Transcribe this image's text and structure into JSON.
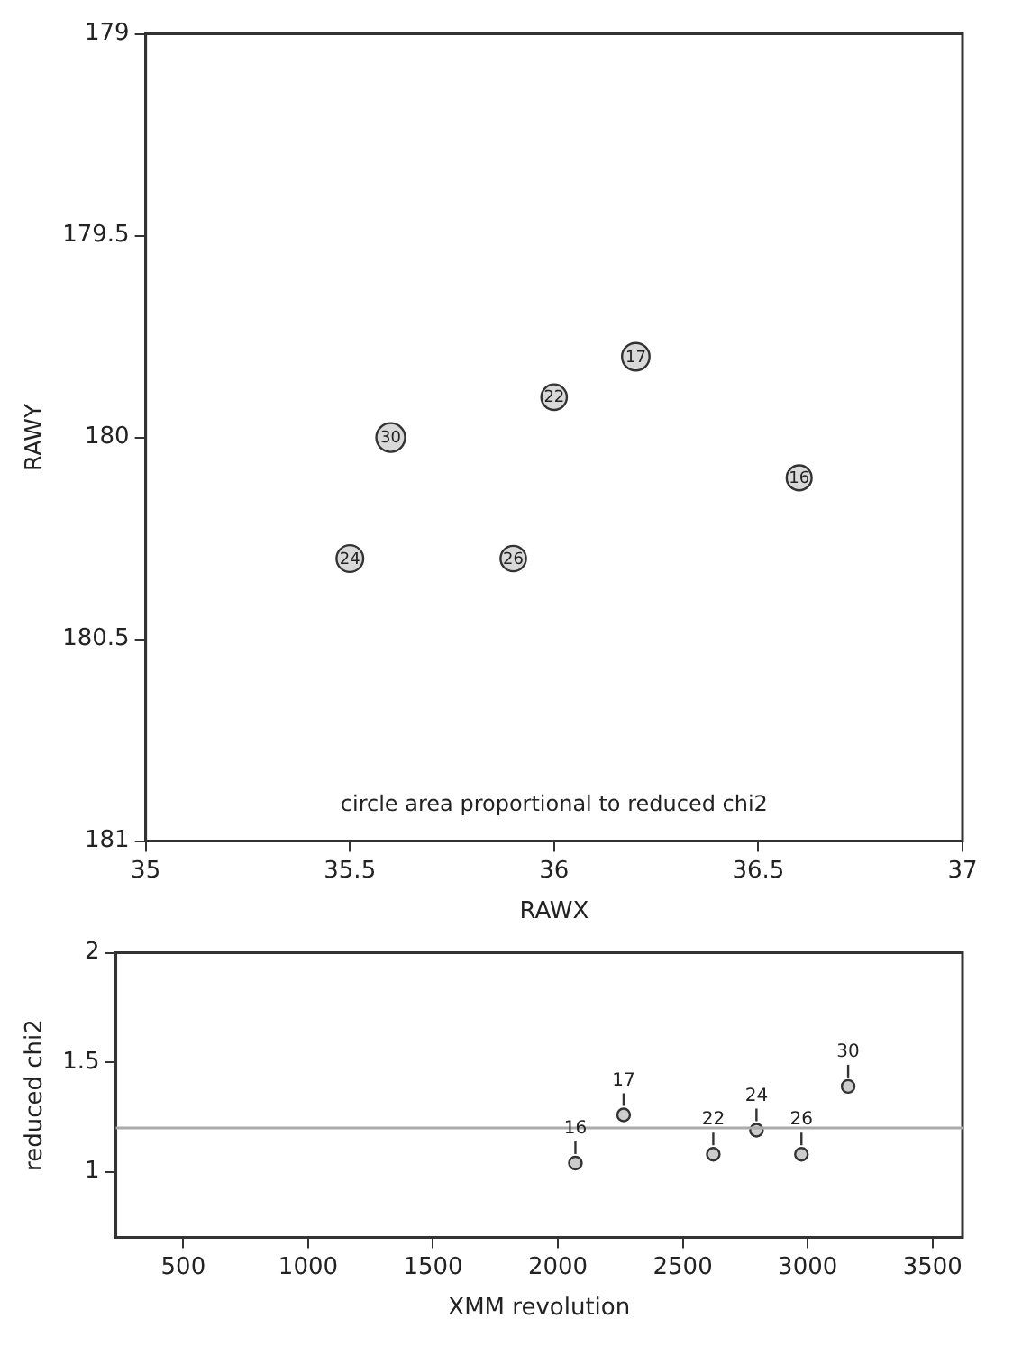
{
  "chart_data": [
    {
      "type": "bubble",
      "xlabel": "RAWX",
      "ylabel": "RAWY",
      "x": [
        36.6,
        36.2,
        36.0,
        35.5,
        35.9,
        35.6
      ],
      "values": [
        180.1,
        179.8,
        179.9,
        180.3,
        180.3,
        180.0
      ],
      "sizes": [
        0.75,
        0.91,
        0.78,
        0.86,
        0.78,
        1
      ],
      "color": "#d9d9d9",
      "xlim": [
        35,
        37
      ],
      "xticks": [
        35,
        35.5,
        36,
        36.5,
        37
      ],
      "ylim": [
        181,
        179
      ],
      "yticks": [
        179,
        179.5,
        180,
        180.5,
        181
      ],
      "grid": false,
      "legend": false,
      "annotations": [
        {
          "text": "16",
          "x": 36.6,
          "y": 180.1
        },
        {
          "text": "17",
          "x": 36.2,
          "y": 179.8
        },
        {
          "text": "22",
          "x": 36.0,
          "y": 179.9
        },
        {
          "text": "24",
          "x": 35.5,
          "y": 180.3
        },
        {
          "text": "26",
          "x": 35.9,
          "y": 180.3
        },
        {
          "text": "30",
          "x": 35.6,
          "y": 180.0
        },
        "circle area proportional to reduced chi2"
      ]
    },
    {
      "type": "scatter",
      "xlabel": "XMM revolution",
      "ylabel": "reduced chi2",
      "x": [
        2070,
        2263,
        2622,
        2795,
        2975,
        3162
      ],
      "values": [
        1.04,
        1.26,
        1.08,
        1.19,
        1.08,
        1.39
      ],
      "color": "#cccccc",
      "marker": "circle",
      "xlim": [
        230,
        3620
      ],
      "xticks": [
        500,
        1000,
        1500,
        2000,
        2500,
        3000,
        3500
      ],
      "ylim": [
        0.7,
        2
      ],
      "yticks": [
        1,
        1.5,
        2
      ],
      "grid": false,
      "legend": false,
      "ref_lines": [
        {
          "axis": "y",
          "value": 1.2,
          "color": "#aaaaaa"
        }
      ],
      "annotations": [
        {
          "text": "16",
          "x": 2070,
          "y": 1.04
        },
        {
          "text": "17",
          "x": 2263,
          "y": 1.26
        },
        {
          "text": "22",
          "x": 2622,
          "y": 1.08
        },
        {
          "text": "24",
          "x": 2795,
          "y": 1.19
        },
        {
          "text": "26",
          "x": 2975,
          "y": 1.08
        },
        {
          "text": "30",
          "x": 3162,
          "y": 1.39
        }
      ]
    }
  ]
}
